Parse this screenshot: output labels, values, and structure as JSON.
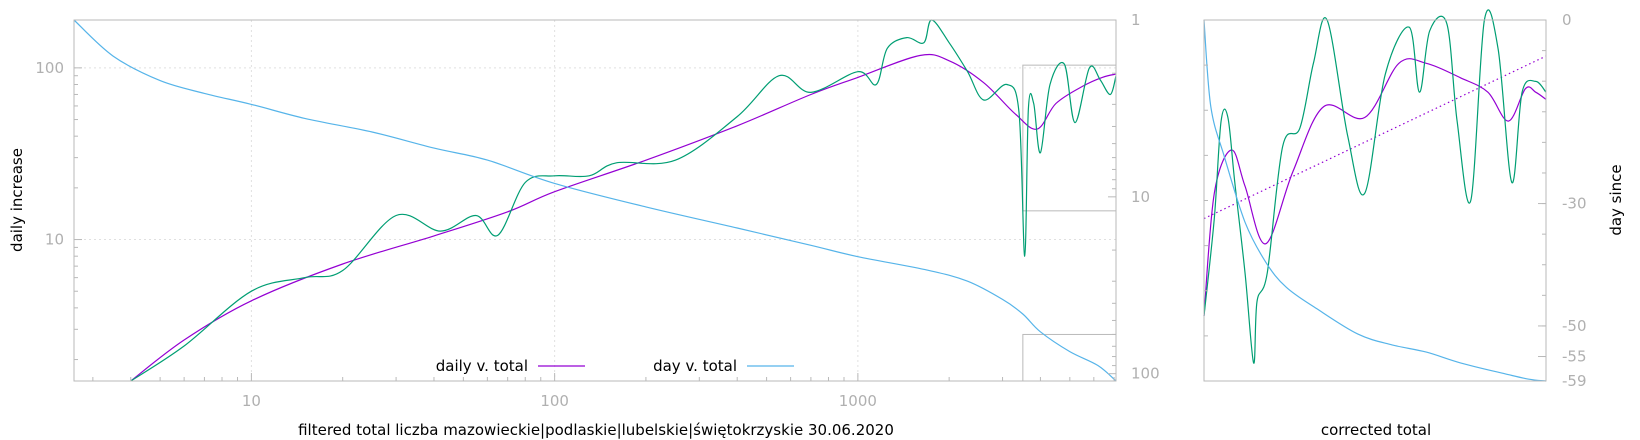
{
  "chart_data": [
    {
      "type": "line",
      "xlabel": "filtered total liczba mazowieckie|podlaskie|lubelskie|świętokrzyskie 30.06.2020",
      "ylabel": "daily increase",
      "y2label": "",
      "xscale": "log",
      "yscale": "log",
      "xlim": [
        2.6,
        7100
      ],
      "ylim": [
        1.5,
        190
      ],
      "y2lim": [
        1,
        110
      ],
      "x_ticks": [
        {
          "v": 10,
          "label": "10"
        },
        {
          "v": 100,
          "label": "100"
        },
        {
          "v": 1000,
          "label": "1000"
        }
      ],
      "y_ticks": [
        {
          "v": 10,
          "label": "10"
        },
        {
          "v": 100,
          "label": "100"
        }
      ],
      "y2_ticks": [
        {
          "v": 1,
          "label": "1"
        },
        {
          "v": 10,
          "label": "10"
        },
        {
          "v": 100,
          "label": "100"
        }
      ],
      "grid": true,
      "legend_position": "bottom-center",
      "inset_range": {
        "x": [
          3500,
          7100
        ],
        "y2": [
          1,
          12
        ]
      },
      "series": [
        {
          "name": "daily v. total",
          "color": "#9400d3",
          "axis": "y",
          "points": [
            [
              4,
              1.5
            ],
            [
              6,
              2.6
            ],
            [
              10,
              4.4
            ],
            [
              20,
              7.2
            ],
            [
              40,
              10.5
            ],
            [
              70,
              14.5
            ],
            [
              100,
              19
            ],
            [
              200,
              29
            ],
            [
              400,
              46
            ],
            [
              700,
              70
            ],
            [
              1000,
              88
            ],
            [
              1600,
              118
            ],
            [
              2000,
              110
            ],
            [
              2600,
              82
            ],
            [
              3300,
              54
            ],
            [
              3900,
              44
            ],
            [
              4500,
              62
            ],
            [
              5500,
              78
            ],
            [
              6400,
              88
            ],
            [
              7100,
              92
            ]
          ]
        },
        {
          "name": "",
          "color": "#009e73",
          "axis": "y",
          "points": [
            [
              4,
              1.5
            ],
            [
              6,
              2.4
            ],
            [
              10,
              5.0
            ],
            [
              15,
              6.0
            ],
            [
              20,
              6.6
            ],
            [
              30,
              13.8
            ],
            [
              42,
              11.2
            ],
            [
              55,
              13.8
            ],
            [
              65,
              10.6
            ],
            [
              80,
              21.5
            ],
            [
              100,
              23.5
            ],
            [
              130,
              23.5
            ],
            [
              160,
              28
            ],
            [
              250,
              29
            ],
            [
              400,
              52
            ],
            [
              550,
              90
            ],
            [
              700,
              72
            ],
            [
              1000,
              95
            ],
            [
              1150,
              80
            ],
            [
              1250,
              130
            ],
            [
              1450,
              150
            ],
            [
              1650,
              140
            ],
            [
              1750,
              190
            ],
            [
              2000,
              140
            ],
            [
              2300,
              95
            ],
            [
              2600,
              65
            ],
            [
              3100,
              80
            ],
            [
              3400,
              55
            ],
            [
              3550,
              8
            ],
            [
              3650,
              58
            ],
            [
              3800,
              62
            ],
            [
              4000,
              32
            ],
            [
              4300,
              80
            ],
            [
              4800,
              105
            ],
            [
              5200,
              48
            ],
            [
              5800,
              100
            ],
            [
              6300,
              85
            ],
            [
              6800,
              70
            ],
            [
              7100,
              90
            ]
          ]
        },
        {
          "name": "day v. total",
          "color": "#56b4e9",
          "axis": "y2",
          "points": [
            [
              2.6,
              1
            ],
            [
              3.5,
              1.6
            ],
            [
              5,
              2.2
            ],
            [
              7,
              2.6
            ],
            [
              10,
              3
            ],
            [
              15,
              3.6
            ],
            [
              25,
              4.3
            ],
            [
              40,
              5.3
            ],
            [
              60,
              6.2
            ],
            [
              100,
              8.4
            ],
            [
              200,
              11.4
            ],
            [
              400,
              15
            ],
            [
              700,
              18.8
            ],
            [
              1000,
              21.8
            ],
            [
              1700,
              26
            ],
            [
              2300,
              30
            ],
            [
              3000,
              38
            ],
            [
              3500,
              46
            ],
            [
              4000,
              58
            ],
            [
              5000,
              75
            ],
            [
              6200,
              90
            ],
            [
              7100,
              110
            ]
          ]
        }
      ]
    },
    {
      "type": "line",
      "xlabel": "corrected total",
      "ylabel": "",
      "y2label": "day since",
      "ylim": [
        0,
        1
      ],
      "y2lim": [
        0,
        -59
      ],
      "y2_ticks": [
        {
          "v": 0,
          "label": "0"
        },
        {
          "v": -30,
          "label": "-30"
        },
        {
          "v": -50,
          "label": "-50"
        },
        {
          "v": -55,
          "label": "-55"
        },
        {
          "v": -59,
          "label": "-59"
        }
      ],
      "series": [
        {
          "color": "#9400d3",
          "style": "solid",
          "points": [
            [
              0,
              0.18
            ],
            [
              0.03,
              0.52
            ],
            [
              0.08,
              0.64
            ],
            [
              0.12,
              0.54
            ],
            [
              0.18,
              0.38
            ],
            [
              0.26,
              0.58
            ],
            [
              0.35,
              0.76
            ],
            [
              0.47,
              0.73
            ],
            [
              0.57,
              0.88
            ],
            [
              0.65,
              0.88
            ],
            [
              0.75,
              0.84
            ],
            [
              0.83,
              0.8
            ],
            [
              0.89,
              0.72
            ],
            [
              0.94,
              0.81
            ],
            [
              0.97,
              0.8
            ],
            [
              1,
              0.78
            ]
          ]
        },
        {
          "color": "#9400d3",
          "style": "dotted",
          "points": [
            [
              0,
              0.45
            ],
            [
              1,
              0.9
            ]
          ]
        },
        {
          "color": "#009e73",
          "style": "solid",
          "points": [
            [
              0,
              0.18
            ],
            [
              0.03,
              0.45
            ],
            [
              0.05,
              0.72
            ],
            [
              0.07,
              0.73
            ],
            [
              0.09,
              0.55
            ],
            [
              0.12,
              0.3
            ],
            [
              0.145,
              0.05
            ],
            [
              0.155,
              0.22
            ],
            [
              0.185,
              0.3
            ],
            [
              0.23,
              0.65
            ],
            [
              0.28,
              0.7
            ],
            [
              0.32,
              0.88
            ],
            [
              0.36,
              1.0
            ],
            [
              0.42,
              0.68
            ],
            [
              0.47,
              0.52
            ],
            [
              0.53,
              0.85
            ],
            [
              0.6,
              0.98
            ],
            [
              0.63,
              0.8
            ],
            [
              0.66,
              0.97
            ],
            [
              0.71,
              0.99
            ],
            [
              0.74,
              0.72
            ],
            [
              0.78,
              0.5
            ],
            [
              0.82,
              1.0
            ],
            [
              0.86,
              0.92
            ],
            [
              0.9,
              0.55
            ],
            [
              0.93,
              0.8
            ],
            [
              0.97,
              0.83
            ],
            [
              1,
              0.8
            ]
          ]
        },
        {
          "color": "#56b4e9",
          "style": "solid",
          "points": [
            [
              0,
              1.0
            ],
            [
              0.02,
              0.76
            ],
            [
              0.06,
              0.62
            ],
            [
              0.12,
              0.44
            ],
            [
              0.18,
              0.33
            ],
            [
              0.24,
              0.26
            ],
            [
              0.33,
              0.2
            ],
            [
              0.45,
              0.13
            ],
            [
              0.55,
              0.1
            ],
            [
              0.65,
              0.08
            ],
            [
              0.75,
              0.05
            ],
            [
              0.88,
              0.02
            ],
            [
              0.95,
              0.005
            ],
            [
              1,
              0.0
            ]
          ]
        }
      ]
    }
  ]
}
